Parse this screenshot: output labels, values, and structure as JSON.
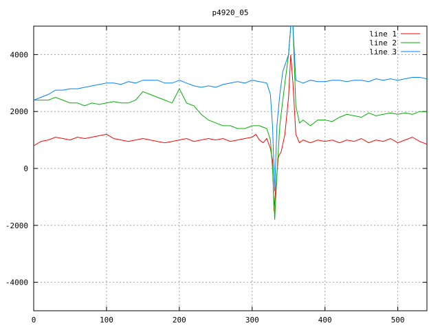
{
  "chart_data": {
    "type": "line",
    "title": "p4920_05",
    "xlabel": "",
    "ylabel": "",
    "xlim": [
      0,
      540
    ],
    "ylim": [
      -5000,
      5000
    ],
    "x_ticks": [
      0,
      100,
      200,
      300,
      400,
      500
    ],
    "y_ticks": [
      -4000,
      -2000,
      0,
      2000,
      4000
    ],
    "grid": true,
    "legend_position": "top-right",
    "series": [
      {
        "name": "line 1",
        "color": "#ff0000",
        "x": [
          0,
          10,
          20,
          30,
          40,
          50,
          60,
          70,
          80,
          90,
          100,
          110,
          120,
          130,
          140,
          150,
          160,
          170,
          180,
          190,
          200,
          210,
          220,
          230,
          240,
          250,
          260,
          270,
          280,
          290,
          300,
          305,
          310,
          315,
          320,
          325,
          328,
          330,
          333,
          336,
          340,
          345,
          350,
          353,
          356,
          360,
          365,
          370,
          380,
          390,
          400,
          410,
          420,
          430,
          440,
          450,
          460,
          470,
          480,
          490,
          500,
          510,
          520,
          530,
          540
        ],
        "y": [
          800,
          950,
          1000,
          1100,
          1050,
          1000,
          1100,
          1050,
          1100,
          1150,
          1200,
          1050,
          1000,
          950,
          1000,
          1050,
          1000,
          950,
          900,
          950,
          1000,
          1050,
          950,
          1000,
          1050,
          1000,
          1050,
          950,
          1000,
          1050,
          1100,
          1200,
          1000,
          900,
          1050,
          700,
          300,
          -1500,
          -500,
          400,
          600,
          1200,
          2500,
          4000,
          3000,
          1200,
          900,
          1000,
          900,
          1000,
          950,
          1000,
          900,
          1000,
          950,
          1050,
          900,
          1000,
          950,
          1050,
          900,
          1000,
          1100,
          950,
          850
        ]
      },
      {
        "name": "line 2",
        "color": "#00b000",
        "x": [
          0,
          10,
          20,
          30,
          40,
          50,
          60,
          70,
          80,
          90,
          100,
          110,
          120,
          130,
          140,
          150,
          160,
          170,
          180,
          190,
          200,
          210,
          220,
          230,
          240,
          250,
          260,
          270,
          280,
          290,
          300,
          310,
          320,
          325,
          328,
          331,
          334,
          338,
          342,
          346,
          350,
          353,
          356,
          360,
          365,
          370,
          380,
          390,
          400,
          410,
          420,
          430,
          440,
          450,
          460,
          470,
          480,
          490,
          500,
          510,
          520,
          530,
          540
        ],
        "y": [
          2400,
          2400,
          2400,
          2500,
          2400,
          2300,
          2300,
          2200,
          2300,
          2250,
          2300,
          2350,
          2300,
          2300,
          2400,
          2700,
          2600,
          2500,
          2400,
          2300,
          2800,
          2300,
          2200,
          1900,
          1700,
          1600,
          1500,
          1500,
          1400,
          1400,
          1500,
          1500,
          1400,
          1000,
          0,
          -1800,
          -200,
          1500,
          2400,
          3200,
          4000,
          5000,
          5000,
          2200,
          1600,
          1700,
          1500,
          1700,
          1700,
          1650,
          1800,
          1900,
          1850,
          1800,
          1950,
          1850,
          1900,
          1950,
          1900,
          1950,
          1900,
          2000,
          2000
        ]
      },
      {
        "name": "line 3",
        "color": "#0080ff",
        "x": [
          0,
          10,
          20,
          30,
          40,
          50,
          60,
          70,
          80,
          90,
          100,
          110,
          120,
          130,
          140,
          150,
          160,
          170,
          180,
          190,
          200,
          210,
          220,
          230,
          240,
          250,
          260,
          270,
          280,
          290,
          300,
          310,
          320,
          325,
          328,
          331,
          334,
          338,
          342,
          346,
          350,
          353,
          356,
          360,
          365,
          370,
          380,
          390,
          400,
          410,
          420,
          430,
          440,
          450,
          460,
          470,
          480,
          490,
          500,
          510,
          520,
          530,
          540
        ],
        "y": [
          2400,
          2500,
          2600,
          2750,
          2750,
          2800,
          2800,
          2850,
          2900,
          2950,
          3000,
          3000,
          2950,
          3050,
          3000,
          3100,
          3100,
          3100,
          3000,
          3000,
          3100,
          3000,
          2900,
          2850,
          2900,
          2850,
          2950,
          3000,
          3050,
          3000,
          3100,
          3050,
          3000,
          2600,
          1500,
          -800,
          1500,
          2600,
          3400,
          3700,
          4000,
          5000,
          5000,
          3100,
          3050,
          3000,
          3100,
          3050,
          3050,
          3100,
          3100,
          3050,
          3100,
          3100,
          3050,
          3150,
          3100,
          3150,
          3100,
          3150,
          3200,
          3200,
          3150
        ]
      }
    ]
  }
}
